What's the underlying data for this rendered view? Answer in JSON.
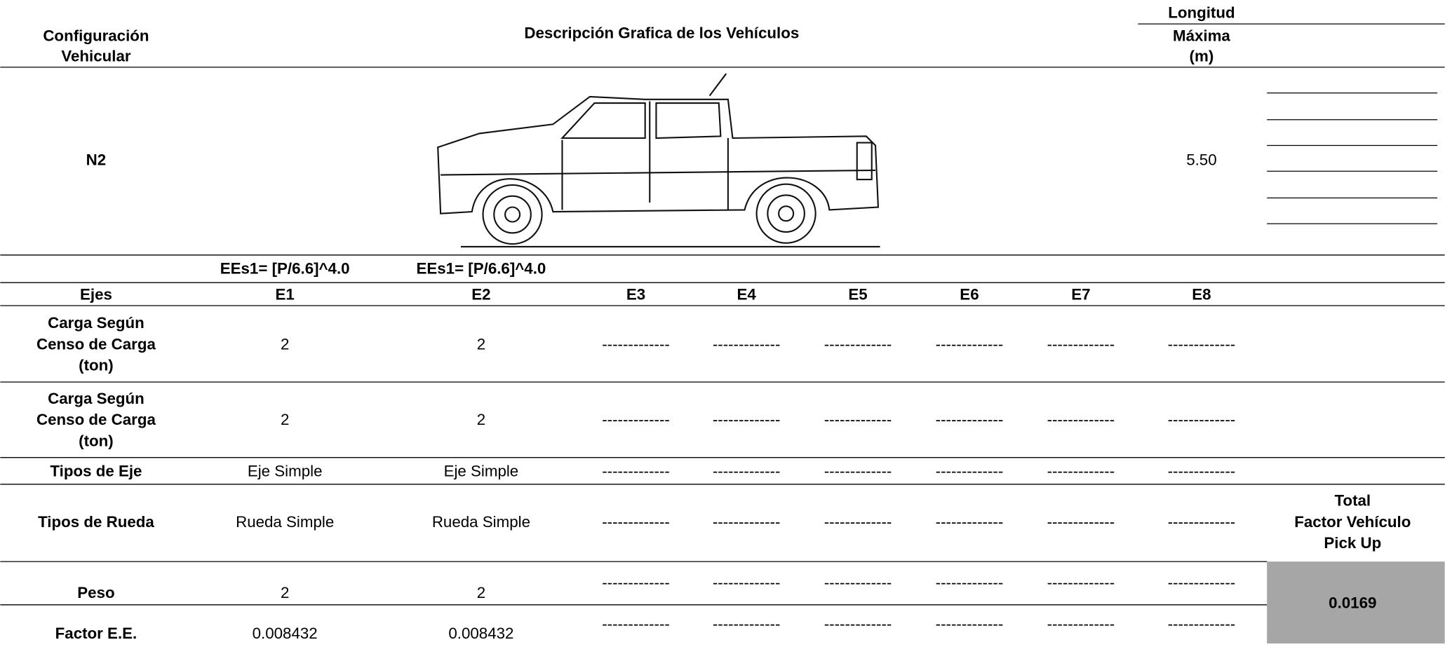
{
  "header": {
    "configuracion": [
      "Configuración",
      "Vehicular"
    ],
    "descripcion": "Descripción Grafica de los Vehículos",
    "longitud": "Longitud",
    "maxima": [
      "Máxima",
      "(m)"
    ]
  },
  "vehicle": {
    "config": "N2",
    "longitud": "5.50"
  },
  "formulas": [
    "EEs1= [P/6.6]^4.0",
    "EEs1= [P/6.6]^4.0"
  ],
  "table": {
    "rows": [
      {
        "label": [
          "Ejes"
        ],
        "cells": [
          "E1",
          "E2",
          "E3",
          "E4",
          "E5",
          "E6",
          "E7",
          "E8"
        ]
      },
      {
        "label": [
          "Carga Según",
          "Censo de Carga",
          "(ton)"
        ],
        "cells": [
          "2",
          "2",
          "-------------",
          "-------------",
          "-------------",
          "-------------",
          "-------------",
          "-------------"
        ]
      },
      {
        "label": [
          "Carga Según",
          "Censo de Carga",
          "(ton)"
        ],
        "cells": [
          "2",
          "2",
          "-------------",
          "-------------",
          "-------------",
          "-------------",
          "-------------",
          "-------------"
        ]
      },
      {
        "label": [
          "Tipos de Eje"
        ],
        "cells": [
          "Eje Simple",
          "Eje Simple",
          "-------------",
          "-------------",
          "-------------",
          "-------------",
          "-------------",
          "-------------"
        ]
      },
      {
        "label": [
          "Tipos de Rueda"
        ],
        "cells": [
          "Rueda Simple",
          "Rueda Simple",
          "-------------",
          "-------------",
          "-------------",
          "-------------",
          "-------------",
          "-------------"
        ]
      },
      {
        "label": [
          "Peso"
        ],
        "cells": [
          "2",
          "2",
          "-------------",
          "-------------",
          "-------------",
          "-------------",
          "-------------",
          "-------------"
        ]
      },
      {
        "label": [
          "Factor E.E."
        ],
        "cells": [
          "0.008432",
          "0.008432",
          "-------------",
          "-------------",
          "-------------",
          "-------------",
          "-------------",
          "-------------"
        ]
      }
    ]
  },
  "total": {
    "label": [
      "Total",
      "Factor Vehículo",
      "Pick Up"
    ],
    "value": "0.0169"
  }
}
